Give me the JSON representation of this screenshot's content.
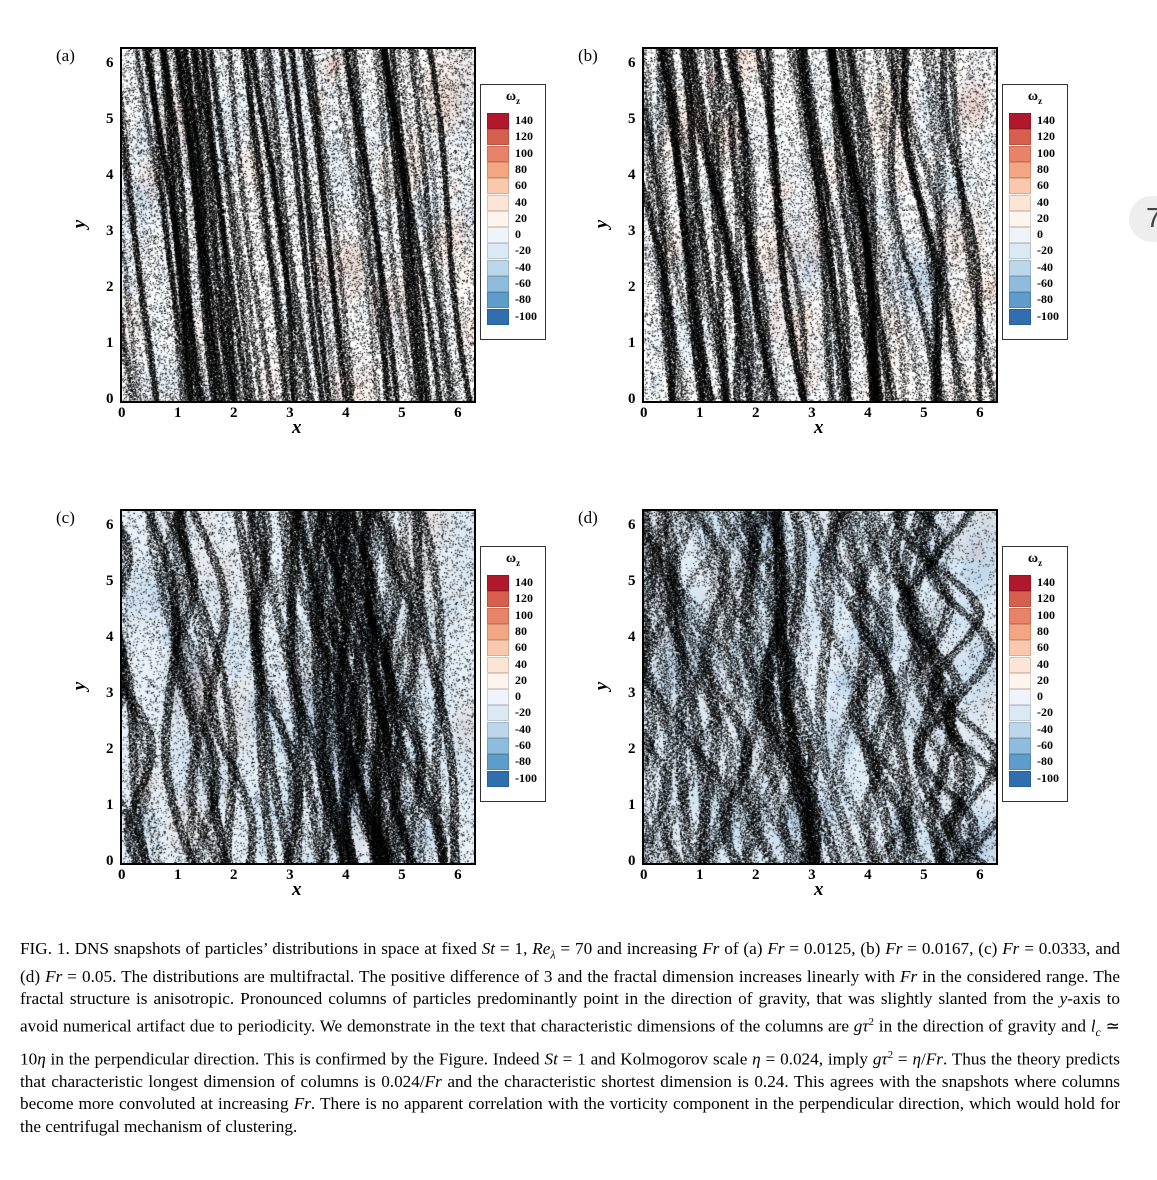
{
  "side_tab": {
    "glyph": "7"
  },
  "panels": [
    {
      "tag": "(a)",
      "xlabel": "x",
      "ylabel": "y",
      "xticks": [
        "0",
        "1",
        "2",
        "3",
        "4",
        "5",
        "6"
      ],
      "yticks": [
        "0",
        "1",
        "2",
        "3",
        "4",
        "5",
        "6"
      ],
      "legend_title": "ωz"
    },
    {
      "tag": "(b)",
      "xlabel": "x",
      "ylabel": "y",
      "xticks": [
        "0",
        "1",
        "2",
        "3",
        "4",
        "5",
        "6"
      ],
      "yticks": [
        "0",
        "1",
        "2",
        "3",
        "4",
        "5",
        "6"
      ],
      "legend_title": "ωz"
    },
    {
      "tag": "(c)",
      "xlabel": "x",
      "ylabel": "y",
      "xticks": [
        "0",
        "1",
        "2",
        "3",
        "4",
        "5",
        "6"
      ],
      "yticks": [
        "0",
        "1",
        "2",
        "3",
        "4",
        "5",
        "6"
      ],
      "legend_title": "ωz"
    },
    {
      "tag": "(d)",
      "xlabel": "x",
      "ylabel": "y",
      "xticks": [
        "0",
        "1",
        "2",
        "3",
        "4",
        "5",
        "6"
      ],
      "yticks": [
        "0",
        "1",
        "2",
        "3",
        "4",
        "5",
        "6"
      ],
      "legend_title": "ωz"
    }
  ],
  "legend": {
    "levels": [
      "140",
      "120",
      "100",
      "80",
      "60",
      "40",
      "20",
      "0",
      "-20",
      "-40",
      "-60",
      "-80",
      "-100"
    ],
    "colors": [
      "#b2182b",
      "#d6604d",
      "#e8836a",
      "#f4a582",
      "#f9c8ad",
      "#fde5d6",
      "#fdf4ee",
      "#eef4f9",
      "#dbe9f4",
      "#bcd7ea",
      "#8fbbdc",
      "#5e9ccc",
      "#2f6fb0"
    ]
  },
  "caption": {
    "s1": "FIG. 1. DNS snapshots of particles’ distributions in space at fixed ",
    "St": "St",
    "s2": " = 1, ",
    "Re": "Re",
    "Re_sub": "λ",
    "s3": " = 70 and increasing ",
    "Fr1": "Fr",
    "s4": " of (a) ",
    "Fr2": "Fr",
    "s5": " = 0.0125, (b) ",
    "Fr3": "Fr",
    "s6": " = 0.0167, (c) ",
    "Fr4": "Fr",
    "s7": " = 0.0333, and (d) ",
    "Fr5": "Fr",
    "s8": " = 0.05. The distributions are multifractal. The positive difference of 3 and the fractal dimension increases linearly with ",
    "Fr6": "Fr",
    "s9": " in the considered range. The fractal structure is anisotropic. Pronounced columns of particles predominantly point in the direction of gravity, that was slightly slanted from the ",
    "y": "y",
    "s10": "-axis to avoid numerical artifact due to periodicity. We demonstrate in the text that characteristic dimensions of the columns are ",
    "gt2": "gτ",
    "sq1": "2",
    "s11": " in the direction of gravity and ",
    "lc": "l",
    "lc_sub": "c",
    "s12": " ≃ 10",
    "eta1": "η",
    "s13": " in the perpendicular direction. This is confirmed by the Figure. Indeed ",
    "St2": "St",
    "s14": " = 1 and Kolmogorov scale ",
    "eta2": "η",
    "s15": " = 0.024, imply ",
    "gt2b": "gτ",
    "sq2": "2",
    "s16": " = ",
    "eta3": "η",
    "s17": "/",
    "Fr7": "Fr",
    "s18": ". Thus the theory predicts that characteristic longest dimension of columns is 0.024/",
    "Fr8": "Fr",
    "s19": " and the characteristic shortest dimension is 0.24. This agrees with the snapshots where columns become more convoluted at increasing ",
    "Fr9": "Fr",
    "s20": ". There is no apparent correlation with the vorticity component in the perpendicular direction, which would hold for the centrifugal mechanism of clustering."
  }
}
